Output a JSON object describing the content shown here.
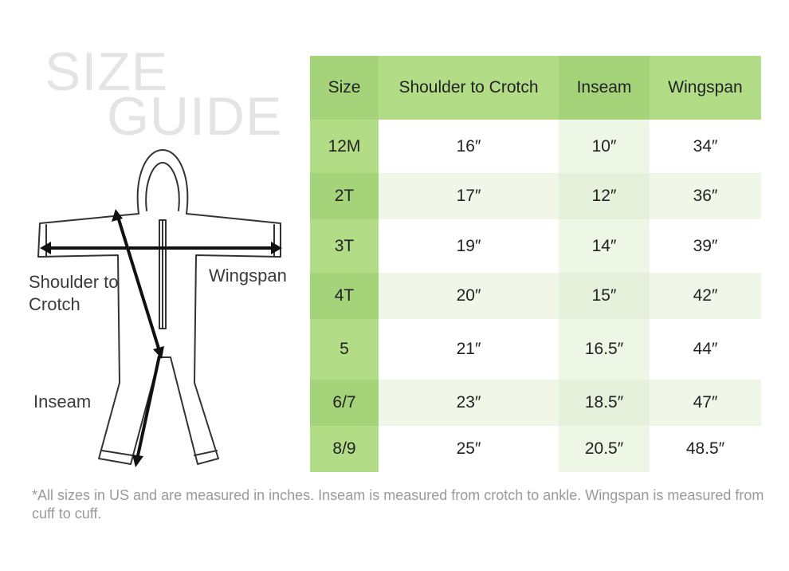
{
  "title": {
    "line1": "SIZE",
    "line2": "GUIDE"
  },
  "figure_labels": {
    "shoulder_to_crotch": "Shoulder to Crotch",
    "wingspan": "Wingspan",
    "inseam": "Inseam"
  },
  "table": {
    "headers": [
      "Size",
      "Shoulder to Crotch",
      "Inseam",
      "Wingspan"
    ],
    "rows": [
      [
        "12M",
        "16″",
        "10″",
        "34″"
      ],
      [
        "2T",
        "17″",
        "12″",
        "36″"
      ],
      [
        "3T",
        "19″",
        "14″",
        "39″"
      ],
      [
        "4T",
        "20″",
        "15″",
        "42″"
      ],
      [
        "5",
        "21″",
        "16.5″",
        "44″"
      ],
      [
        "6/7",
        "23″",
        "18.5″",
        "47″"
      ],
      [
        "8/9",
        "25″",
        "20.5″",
        "48.5″"
      ]
    ]
  },
  "footnote": "*All sizes in US and are measured in inches. Inseam is measured from crotch to ankle. Wingspan is measured from cuff to cuff.",
  "colors": {
    "header_green": "#b3dc87",
    "size_col_green": "#a4d37a",
    "row_alt": "#f0f7e9"
  }
}
